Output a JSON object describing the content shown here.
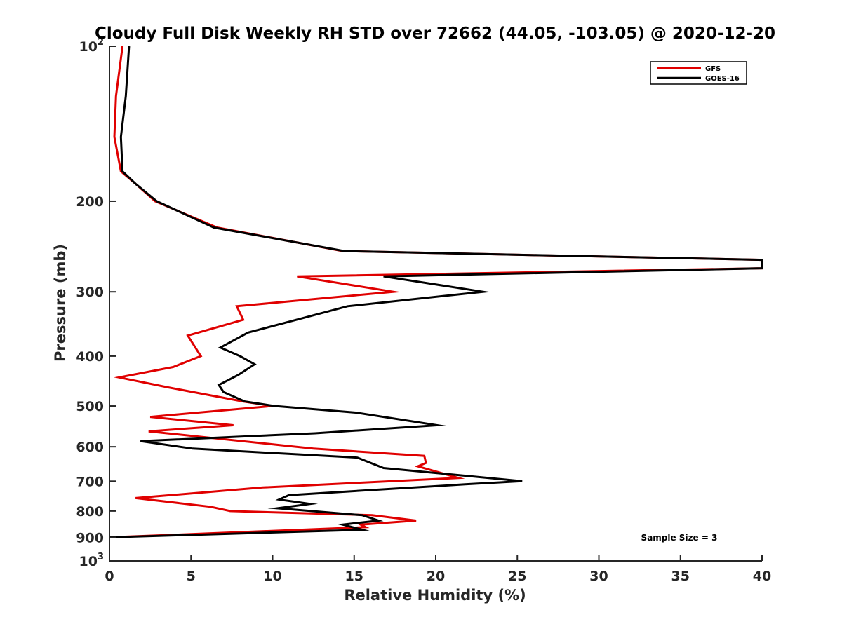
{
  "chart_data": {
    "type": "line",
    "title": "Cloudy Full Disk Weekly RH STD over 72662 (44.05, -103.05) @ 2020-12-20",
    "xlabel": "Relative Humidity (%)",
    "ylabel": "Pressure (mb)",
    "xlim": [
      0,
      40
    ],
    "ylim": [
      100,
      1000
    ],
    "y_scale": "log",
    "y_reversed": true,
    "x_ticks": [
      "0",
      "5",
      "10",
      "15",
      "20",
      "25",
      "30",
      "35",
      "40"
    ],
    "y_ticks": [
      {
        "value": 100,
        "base": "10",
        "exp": "2"
      },
      {
        "value": 200,
        "label": "200"
      },
      {
        "value": 300,
        "label": "300"
      },
      {
        "value": 400,
        "label": "400"
      },
      {
        "value": 500,
        "label": "500"
      },
      {
        "value": 600,
        "label": "600"
      },
      {
        "value": 700,
        "label": "700"
      },
      {
        "value": 800,
        "label": "800"
      },
      {
        "value": 900,
        "label": "900"
      },
      {
        "value": 1000,
        "base": "10",
        "exp": "3"
      }
    ],
    "grid": false,
    "legend_position": "top-right",
    "annotation": "Sample Size = 3",
    "series": [
      {
        "name": "GFS",
        "color": "#e00000",
        "points": [
          [
            0.8,
            100
          ],
          [
            0.4,
            125
          ],
          [
            0.3,
            150
          ],
          [
            0.7,
            175
          ],
          [
            1.6,
            185
          ],
          [
            2.8,
            200
          ],
          [
            6.6,
            225
          ],
          [
            14.3,
            250
          ],
          [
            40.0,
            260
          ],
          [
            40.0,
            270
          ],
          [
            11.5,
            280
          ],
          [
            17.4,
            300
          ],
          [
            7.8,
            320
          ],
          [
            8.2,
            340
          ],
          [
            4.8,
            365
          ],
          [
            5.6,
            400
          ],
          [
            3.9,
            420
          ],
          [
            0.6,
            440
          ],
          [
            3.6,
            460
          ],
          [
            8.2,
            490
          ],
          [
            10.0,
            500
          ],
          [
            2.5,
            525
          ],
          [
            7.6,
            545
          ],
          [
            2.4,
            560
          ],
          [
            12.5,
            605
          ],
          [
            19.3,
            625
          ],
          [
            19.4,
            645
          ],
          [
            18.9,
            655
          ],
          [
            21.4,
            690
          ],
          [
            9.4,
            720
          ],
          [
            1.6,
            755
          ],
          [
            6.2,
            785
          ],
          [
            7.4,
            800
          ],
          [
            16.1,
            815
          ],
          [
            18.8,
            835
          ],
          [
            15.4,
            850
          ],
          [
            15.7,
            860
          ],
          [
            0.0,
            900
          ]
        ]
      },
      {
        "name": "GOES-16",
        "color": "#000000",
        "points": [
          [
            1.2,
            100
          ],
          [
            1.0,
            125
          ],
          [
            0.7,
            150
          ],
          [
            0.8,
            175
          ],
          [
            1.6,
            185
          ],
          [
            2.9,
            200
          ],
          [
            6.4,
            225
          ],
          [
            14.4,
            250
          ],
          [
            40.0,
            260
          ],
          [
            40.0,
            270
          ],
          [
            16.8,
            280
          ],
          [
            22.9,
            300
          ],
          [
            14.6,
            320
          ],
          [
            8.5,
            360
          ],
          [
            6.8,
            385
          ],
          [
            8.0,
            400
          ],
          [
            8.9,
            415
          ],
          [
            7.9,
            435
          ],
          [
            6.7,
            455
          ],
          [
            7.0,
            470
          ],
          [
            8.3,
            490
          ],
          [
            10.1,
            500
          ],
          [
            15.1,
            515
          ],
          [
            20.1,
            545
          ],
          [
            12.6,
            565
          ],
          [
            1.9,
            585
          ],
          [
            5.1,
            605
          ],
          [
            15.2,
            630
          ],
          [
            16.8,
            660
          ],
          [
            25.3,
            700
          ],
          [
            21.8,
            710
          ],
          [
            11.0,
            745
          ],
          [
            10.4,
            760
          ],
          [
            12.3,
            775
          ],
          [
            10.3,
            790
          ],
          [
            15.5,
            815
          ],
          [
            16.5,
            835
          ],
          [
            14.3,
            850
          ],
          [
            15.5,
            870
          ],
          [
            0.0,
            900
          ]
        ]
      }
    ]
  }
}
